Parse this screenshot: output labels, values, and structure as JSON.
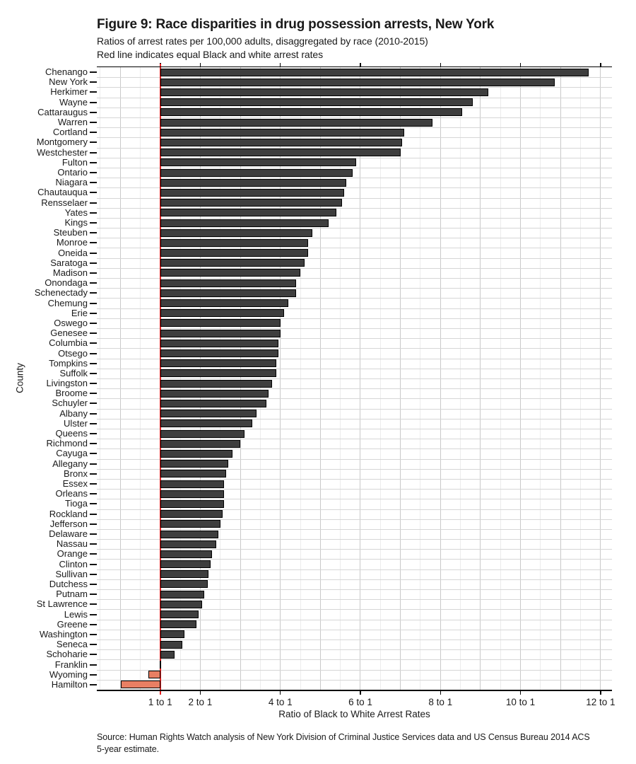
{
  "title": "Figure 9: Race disparities in drug possession arrests, New York",
  "subtitle1": "Ratios of arrest rates per 100,000 adults, disaggregated by race (2010-2015)",
  "subtitle2": "Red line indicates equal Black and white arrest rates",
  "source_line1": "Source: Human Rights Watch analysis of New York Division of Criminal Justice Services data and US Census Bureau 2014 ACS",
  "source_line2": "5-year estimate.",
  "chart_data": {
    "type": "bar",
    "orientation": "horizontal",
    "title": "Figure 9: Race disparities in drug possession arrests, New York",
    "subtitle": "Ratios of arrest rates per 100,000 adults, disaggregated by race (2010-2015)",
    "note": "Red line indicates equal Black and white arrest rates",
    "xlabel": "Ratio of Black to White Arrest Rates",
    "ylabel": "County",
    "xlim": [
      -0.585,
      12.285
    ],
    "baseline": 1,
    "grid": "vertical major gridlines at every integer ratio, minor at half-integers, light horizontal separators per county row",
    "reference_line": {
      "value": 1,
      "meaning": "equal Black and white arrest rates",
      "color": "#e52222"
    },
    "x_ticks": [
      {
        "value": 1,
        "label": "1 to 1"
      },
      {
        "value": 2,
        "label": "2 to 1"
      },
      {
        "value": 4,
        "label": "4 to 1"
      },
      {
        "value": 6,
        "label": "6 to 1"
      },
      {
        "value": 8,
        "label": "8 to 1"
      },
      {
        "value": 10,
        "label": "10 to 1"
      },
      {
        "value": 12,
        "label": "12 to 1"
      }
    ],
    "categories": [
      "Chenango",
      "New York",
      "Herkimer",
      "Wayne",
      "Cattaraugus",
      "Warren",
      "Cortland",
      "Montgomery",
      "Westchester",
      "Fulton",
      "Ontario",
      "Niagara",
      "Chautauqua",
      "Rensselaer",
      "Yates",
      "Kings",
      "Steuben",
      "Monroe",
      "Oneida",
      "Saratoga",
      "Madison",
      "Onondaga",
      "Schenectady",
      "Chemung",
      "Erie",
      "Oswego",
      "Genesee",
      "Columbia",
      "Otsego",
      "Tompkins",
      "Suffolk",
      "Livingston",
      "Broome",
      "Schuyler",
      "Albany",
      "Ulster",
      "Queens",
      "Richmond",
      "Cayuga",
      "Allegany",
      "Bronx",
      "Essex",
      "Orleans",
      "Tioga",
      "Rockland",
      "Jefferson",
      "Delaware",
      "Nassau",
      "Orange",
      "Clinton",
      "Sullivan",
      "Dutchess",
      "Putnam",
      "St Lawrence",
      "Lewis",
      "Greene",
      "Washington",
      "Seneca",
      "Schoharie",
      "Franklin",
      "Wyoming",
      "Hamilton"
    ],
    "values": [
      11.7,
      10.85,
      9.2,
      8.8,
      8.55,
      7.8,
      7.1,
      7.05,
      7.0,
      5.9,
      5.8,
      5.65,
      5.6,
      5.55,
      5.4,
      5.2,
      4.8,
      4.7,
      4.7,
      4.6,
      4.5,
      4.4,
      4.4,
      4.2,
      4.1,
      4.0,
      4.0,
      3.95,
      3.95,
      3.9,
      3.9,
      3.8,
      3.7,
      3.65,
      3.4,
      3.3,
      3.1,
      3.0,
      2.8,
      2.7,
      2.65,
      2.6,
      2.6,
      2.6,
      2.55,
      2.5,
      2.45,
      2.4,
      2.3,
      2.25,
      2.2,
      2.18,
      2.1,
      2.05,
      1.95,
      1.9,
      1.6,
      1.55,
      1.35,
      0.98,
      0.7,
      0.02
    ],
    "colors": {
      "bar_above_baseline": "#3e3e3e",
      "bar_below_baseline": "#e97f63",
      "bar_border": "#000000",
      "reference_line": "#e52222",
      "grid_major": "#c9c9c9",
      "grid_minor": "#ececec",
      "row_separator": "#d6d6d6",
      "axis": "#000000",
      "text": "#1a1a1a"
    },
    "legend": "none"
  }
}
